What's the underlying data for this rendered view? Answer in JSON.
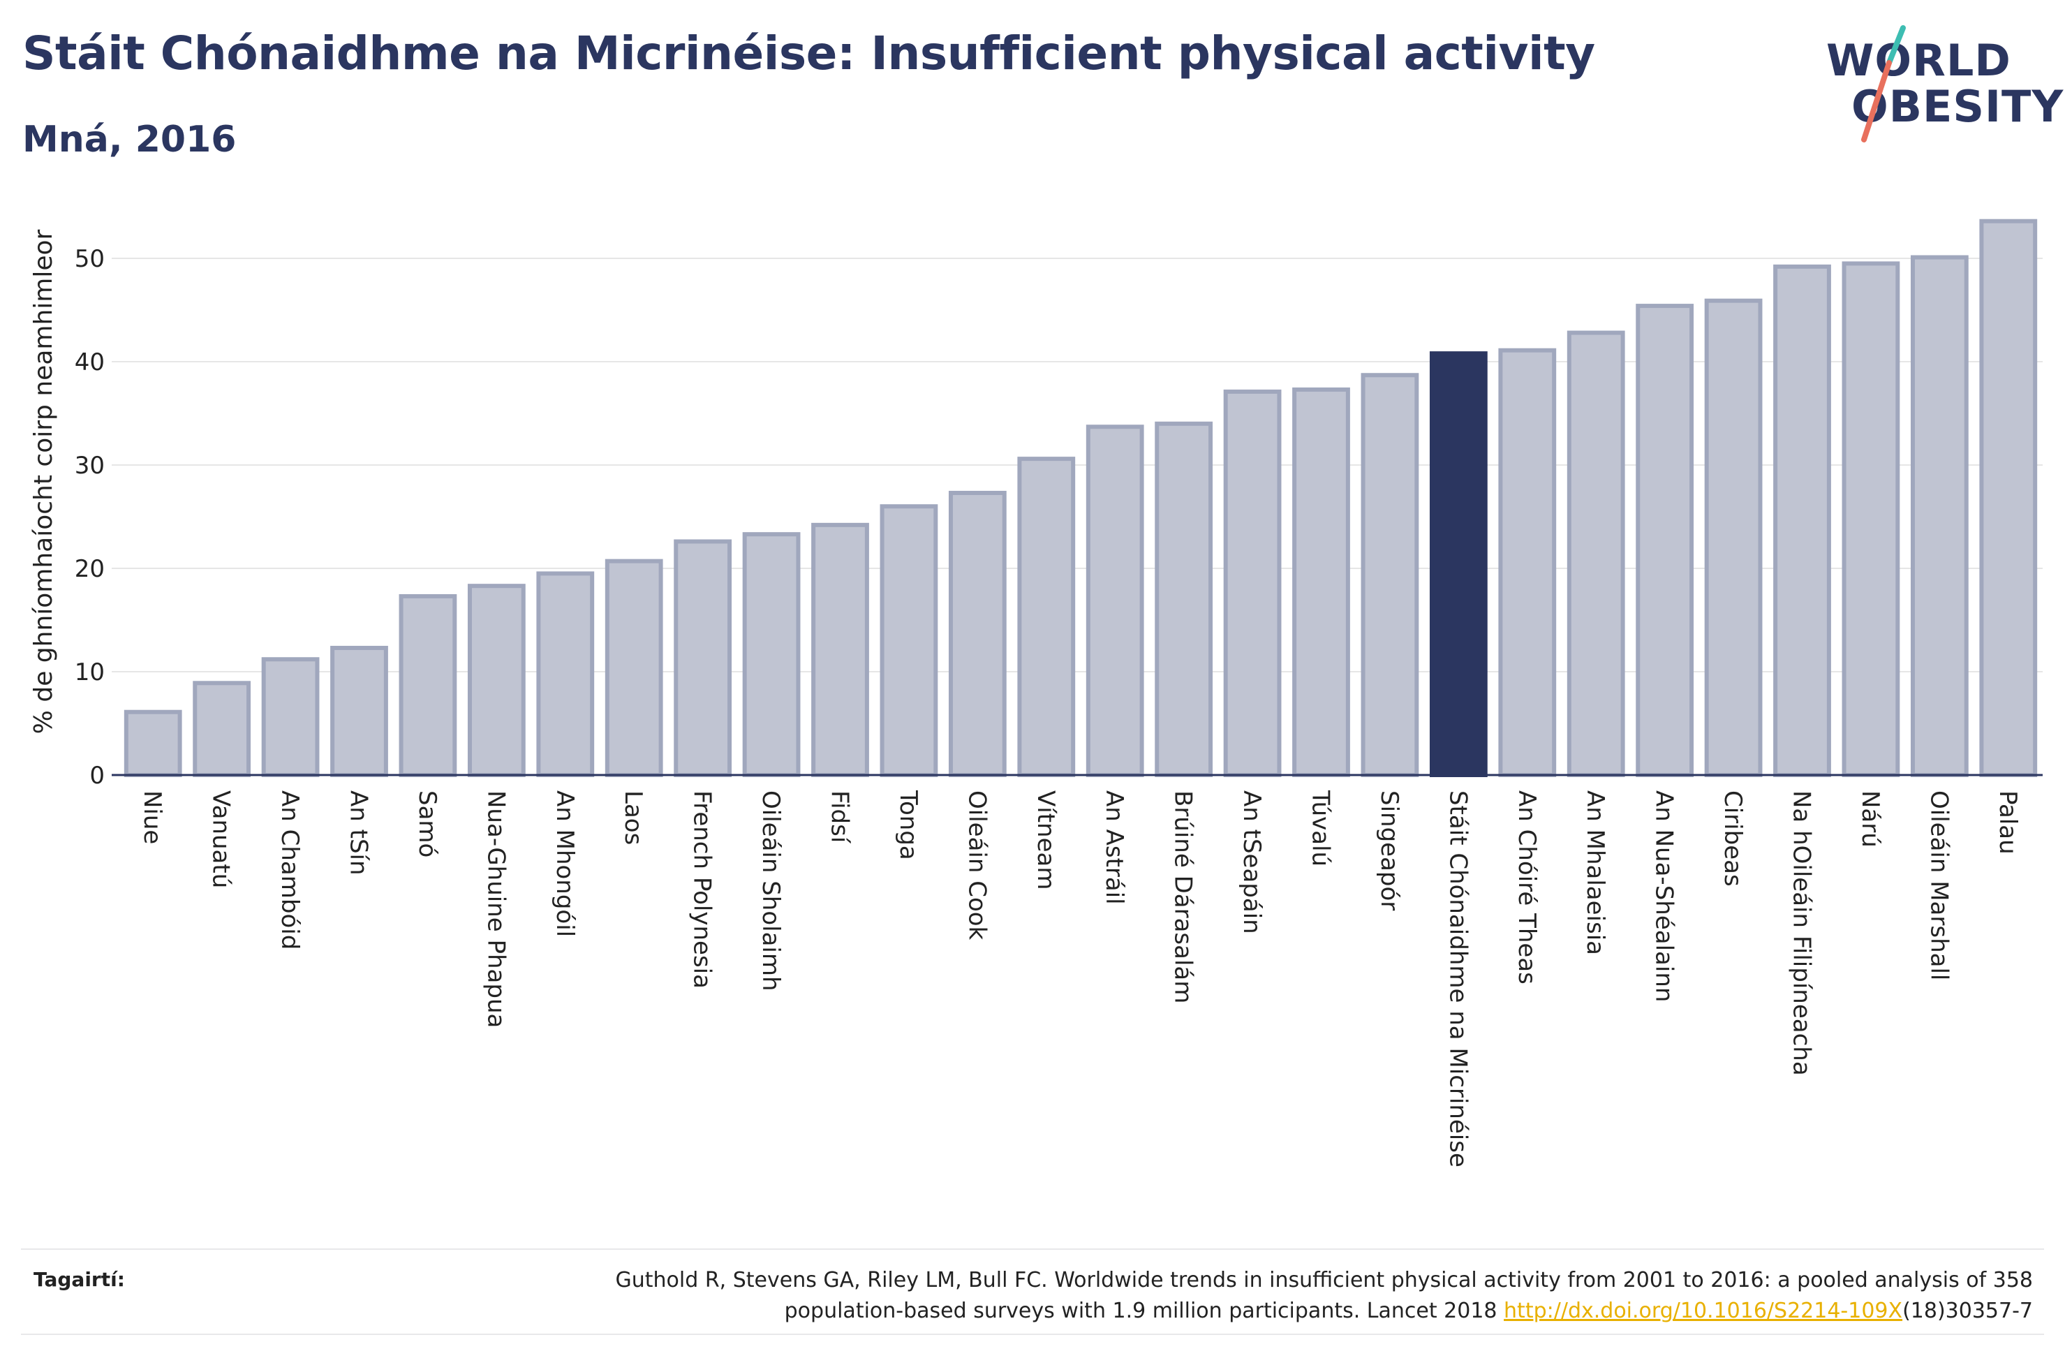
{
  "title": "Stáit Chónaidhme na Micrinéise: Insufficient physical activity",
  "subtitle": "Mná, 2016",
  "logo": {
    "line1": "WORLD",
    "line2": "OBESITY"
  },
  "colors": {
    "bar": "#c0c4d2",
    "bar_stroke": "#a0a7bd",
    "highlight": "#2b3660",
    "grid": "#e6e6e6",
    "axis": "#2b3660",
    "logo_slash_teal": "#3dbdb2",
    "logo_slash_red": "#e8705d",
    "link": "#e8b000"
  },
  "chart_data": {
    "type": "bar",
    "ylabel": "% de ghníomhaíocht coirp neamhimleor",
    "xlabel": "",
    "ylim": [
      0,
      55
    ],
    "yticks": [
      0,
      10,
      20,
      30,
      40,
      50
    ],
    "highlight": "Stáit Chónaidhme na Micrinéise",
    "categories": [
      "Niue",
      "Vanuatú",
      "An Chambóid",
      "An tSín",
      "Samó",
      "Nua-Ghuine Phapua",
      "An Mhongóil",
      "Laos",
      "French Polynesia",
      "Oileáin Sholaimh",
      "Fidsí",
      "Tonga",
      "Oileáin Cook",
      "Vítneam",
      "An Astráil",
      "Brúiné Dárasalám",
      "An tSeapáin",
      "Túvalú",
      "Singeapór",
      "Stáit Chónaidhme na Micrinéise",
      "An Chóiré Theas",
      "An Mhalaeisia",
      "An Nua-Shéalainn",
      "Ciribeas",
      "Na hOileáin Filipíneacha",
      "Nárú",
      "Oileáin Marshall",
      "Palau"
    ],
    "values": [
      6.1,
      8.9,
      11.2,
      12.3,
      17.3,
      18.3,
      19.5,
      20.7,
      22.6,
      23.3,
      24.2,
      26.0,
      27.3,
      30.6,
      33.7,
      34.0,
      37.1,
      37.3,
      38.7,
      40.8,
      41.1,
      42.8,
      45.4,
      45.9,
      49.2,
      49.5,
      50.1,
      53.6
    ]
  },
  "references": {
    "label": "Tagairtí:",
    "line1": "Guthold R, Stevens GA, Riley LM, Bull FC. Worldwide trends in insufficient physical activity from 2001 to 2016: a pooled analysis of 358",
    "line2_pre": "population-based surveys with 1.9 million participants. Lancet 2018 ",
    "link": "http://dx.doi.org/10.1016/S2214-109X",
    "line2_post": "(18)30357-7"
  }
}
